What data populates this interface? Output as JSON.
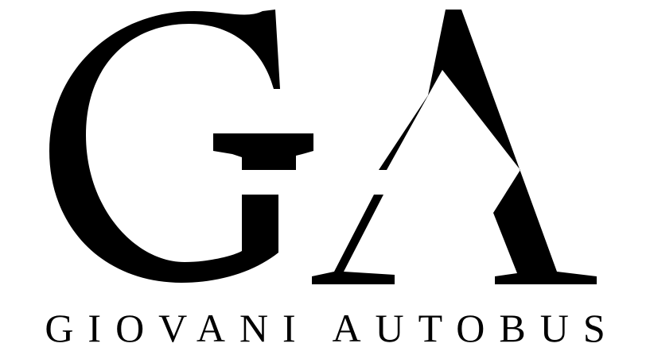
{
  "logo": {
    "monogram_letters": "GA",
    "brand_name": "GIOVANI AUTOBUS",
    "ink_color": "#000000",
    "background_color": "#ffffff"
  }
}
